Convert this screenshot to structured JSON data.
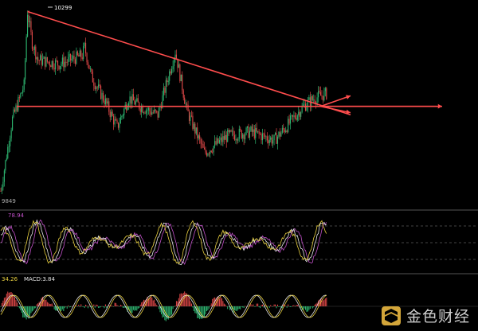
{
  "chart_data": [
    {
      "type": "candlestick",
      "panel": "price",
      "colors": {
        "up": "#2eb872",
        "down": "#e04848",
        "annotation": "#ff4d4d",
        "guide": "#888888"
      },
      "annotations": {
        "high_label": "10299",
        "low_label": "9849",
        "descending_trendline": {
          "from_index": 23,
          "to_index": 155,
          "from_price": 10294,
          "to_price": 10075
        },
        "horizontal_level": {
          "price": 10070
        },
        "arrows": [
          {
            "direction": "up-right",
            "target_price": 10095
          },
          {
            "direction": "right",
            "target_price": 10070
          },
          {
            "direction": "down-right",
            "target_price": 10055
          }
        ]
      },
      "ylim": [
        9840,
        10310
      ]
    },
    {
      "type": "line",
      "panel": "oscillator",
      "header": "78.94",
      "series_colors": [
        "#c050c8",
        "#e6e6e6",
        "#e8d040"
      ],
      "ylim": [
        0,
        100
      ],
      "levels": [
        80,
        50,
        20
      ]
    },
    {
      "type": "bar",
      "panel": "macd",
      "header_left": "34.26",
      "header_right": "MACD:3.84",
      "series_colors": [
        "#e6e6e6",
        "#e8d040"
      ],
      "histogram_colors": {
        "positive": "#e04848",
        "negative": "#2eb872"
      }
    }
  ],
  "watermark": {
    "logo_icon": "jinse-logo-icon",
    "text": "金色财经"
  }
}
